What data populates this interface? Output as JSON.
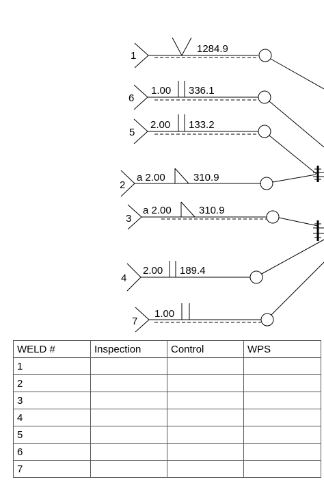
{
  "welds": [
    {
      "number": "1",
      "size": "",
      "length": "1284.9"
    },
    {
      "number": "6",
      "size": "1.00",
      "length": "336.1"
    },
    {
      "number": "5",
      "size": "2.00",
      "length": "133.2"
    },
    {
      "number": "2",
      "size": "a 2.00",
      "length": "310.9"
    },
    {
      "number": "3",
      "size": "a 2.00",
      "length": "310.9"
    },
    {
      "number": "4",
      "size": "2.00",
      "length": "189.4"
    },
    {
      "number": "7",
      "size": "1.00",
      "length": ""
    }
  ],
  "table": {
    "headers": [
      "WELD #",
      "Inspection",
      "Control",
      "WPS"
    ],
    "rows": [
      [
        "1",
        "",
        "",
        ""
      ],
      [
        "2",
        "",
        "",
        ""
      ],
      [
        "3",
        "",
        "",
        ""
      ],
      [
        "4",
        "",
        "",
        ""
      ],
      [
        "5",
        "",
        "",
        ""
      ],
      [
        "6",
        "",
        "",
        ""
      ],
      [
        "7",
        "",
        "",
        ""
      ]
    ]
  }
}
